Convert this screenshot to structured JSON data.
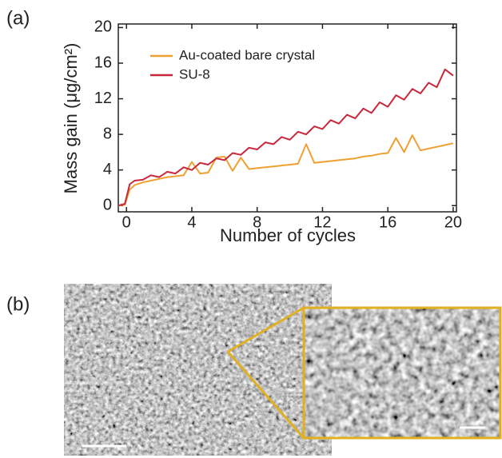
{
  "panels": {
    "a": "(a)",
    "b": "(b)"
  },
  "chart_data": {
    "type": "line",
    "xlabel": "Number of cycles",
    "ylabel": "Mass gain (μg/cm²)",
    "x": [
      -0.5,
      -0.1,
      0.2,
      0.5,
      1,
      1.5,
      2,
      2.5,
      3,
      3.5,
      4,
      4.5,
      5,
      5.5,
      6,
      6.5,
      7,
      7.5,
      8,
      8.5,
      9,
      9.5,
      10,
      10.5,
      11,
      11.5,
      12,
      12.5,
      13,
      13.5,
      14,
      14.5,
      15,
      15.5,
      16,
      16.5,
      17,
      17.5,
      18,
      18.5,
      19,
      19.5,
      20
    ],
    "series": [
      {
        "name": "Au-coated bare crystal",
        "color": "#f0a030",
        "values": [
          0,
          0.1,
          1.8,
          2.3,
          2.6,
          2.8,
          3.0,
          3.2,
          3.3,
          3.4,
          4.9,
          3.6,
          3.7,
          5.4,
          5.5,
          3.9,
          5.4,
          4.1,
          4.2,
          4.3,
          4.4,
          4.5,
          4.6,
          4.7,
          6.9,
          4.8,
          4.9,
          5.0,
          5.1,
          5.2,
          5.3,
          5.5,
          5.6,
          5.8,
          5.9,
          7.6,
          6.0,
          7.9,
          6.2,
          6.4,
          6.6,
          6.8,
          7.0
        ]
      },
      {
        "name": "SU-8",
        "color": "#c8283c",
        "values": [
          0,
          0.2,
          2.4,
          2.8,
          2.9,
          3.4,
          3.2,
          3.8,
          3.6,
          4.3,
          4.0,
          4.8,
          4.6,
          5.3,
          5.1,
          5.9,
          5.7,
          6.5,
          6.3,
          7.1,
          6.9,
          7.7,
          7.4,
          8.3,
          8.0,
          8.9,
          8.6,
          9.6,
          9.2,
          10.2,
          9.8,
          10.9,
          10.4,
          11.6,
          11.1,
          12.4,
          11.9,
          13.1,
          12.6,
          13.8,
          13.3,
          15.3,
          14.6
        ]
      }
    ],
    "xlim": [
      -0.5,
      20.2
    ],
    "xticks": [
      0,
      4,
      8,
      12,
      16,
      20
    ],
    "ylim": [
      -0.7,
      20.4
    ],
    "yticks": [
      0,
      4,
      8,
      12,
      16,
      20
    ],
    "grid": false,
    "legend": "upper left"
  }
}
